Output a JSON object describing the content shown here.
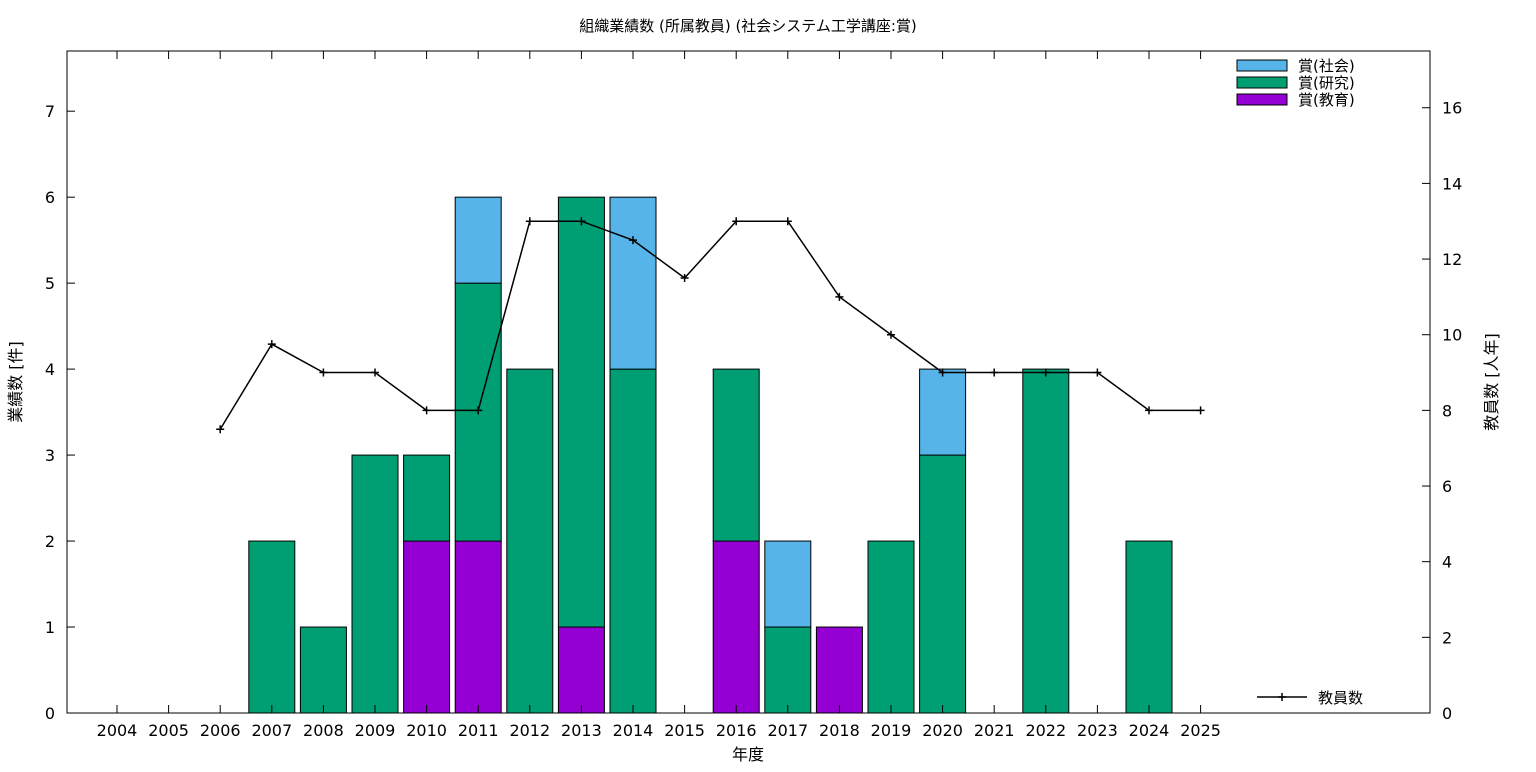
{
  "chart_data": {
    "type": "bar",
    "stacked": true,
    "title": "組織業績数 (所属教員) (社会システム工学講座:賞)",
    "xlabel": "年度",
    "ylabel": "業績数 [件]",
    "y2label": "教員数 [人年]",
    "categories": [
      "2004",
      "2005",
      "2006",
      "2007",
      "2008",
      "2009",
      "2010",
      "2011",
      "2012",
      "2013",
      "2014",
      "2015",
      "2016",
      "2017",
      "2018",
      "2019",
      "2020",
      "2021",
      "2022",
      "2023",
      "2024",
      "2025"
    ],
    "ylim": [
      0,
      7.7
    ],
    "yticks": [
      0,
      1,
      2,
      3,
      4,
      5,
      6,
      7
    ],
    "y2lim": [
      0,
      17.5
    ],
    "y2ticks": [
      0,
      2,
      4,
      6,
      8,
      10,
      12,
      14,
      16
    ],
    "legend_position": "top-right",
    "series": [
      {
        "name": "賞(教育)",
        "color": "#9400d3",
        "values": [
          0,
          0,
          0,
          0,
          0,
          0,
          2,
          2,
          0,
          1,
          0,
          0,
          2,
          0,
          1,
          0,
          0,
          0,
          0,
          0,
          0,
          0
        ]
      },
      {
        "name": "賞(研究)",
        "color": "#009e73",
        "values": [
          0,
          0,
          0,
          2,
          1,
          3,
          1,
          3,
          4,
          5,
          4,
          0,
          2,
          1,
          0,
          2,
          3,
          0,
          4,
          0,
          2,
          0
        ]
      },
      {
        "name": "賞(社会)",
        "color": "#56b4e9",
        "values": [
          0,
          0,
          0,
          0,
          0,
          0,
          0,
          1,
          0,
          0,
          2,
          0,
          0,
          1,
          0,
          0,
          1,
          0,
          0,
          0,
          0,
          0
        ]
      }
    ],
    "line_series": {
      "name": "教員数",
      "axis": "y2",
      "color": "#000000",
      "x": [
        "2006",
        "2007",
        "2008",
        "2009",
        "2010",
        "2011",
        "2012",
        "2013",
        "2014",
        "2015",
        "2016",
        "2017",
        "2018",
        "2019",
        "2020",
        "2021",
        "2022",
        "2023",
        "2024",
        "2025"
      ],
      "values": [
        7.5,
        9.75,
        9,
        9,
        8,
        8,
        13,
        13,
        12.5,
        11.5,
        13,
        13,
        11,
        10,
        9,
        9,
        9,
        9,
        8,
        8
      ]
    }
  }
}
